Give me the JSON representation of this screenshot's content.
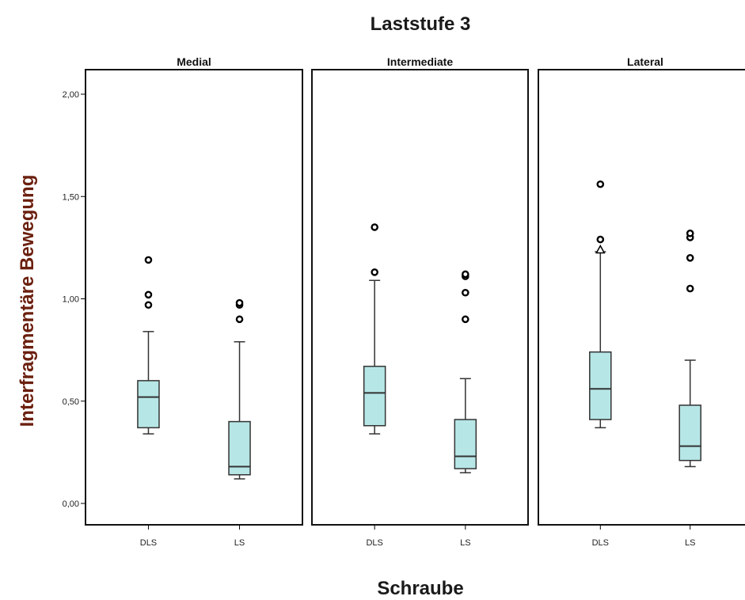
{
  "chart_data": {
    "type": "boxplot",
    "title": "Laststufe 3",
    "xlabel": "Schraube",
    "ylabel": "Interfragmentäre Bewegung",
    "ylim": [
      0,
      2.1
    ],
    "yticks": [
      {
        "value": 0,
        "label": "0,00"
      },
      {
        "value": 0.5,
        "label": "0,50"
      },
      {
        "value": 1.0,
        "label": "1,00"
      },
      {
        "value": 1.5,
        "label": "1,50"
      },
      {
        "value": 2.0,
        "label": "2,00"
      }
    ],
    "categories": [
      "DLS",
      "LS"
    ],
    "box_color": "#b7e6e6",
    "panels": [
      {
        "title": "Medial",
        "boxes": [
          {
            "category": "DLS",
            "whisker_low": 0.34,
            "q1": 0.37,
            "median": 0.52,
            "q3": 0.6,
            "whisker_high": 0.84,
            "outliers": [
              0.97,
              1.02,
              1.19
            ],
            "extremes": []
          },
          {
            "category": "LS",
            "whisker_low": 0.12,
            "q1": 0.14,
            "median": 0.18,
            "q3": 0.4,
            "whisker_high": 0.79,
            "outliers": [
              0.9,
              0.97,
              0.98
            ],
            "extremes": []
          }
        ]
      },
      {
        "title": "Intermediate",
        "boxes": [
          {
            "category": "DLS",
            "whisker_low": 0.34,
            "q1": 0.38,
            "median": 0.54,
            "q3": 0.67,
            "whisker_high": 1.09,
            "outliers": [
              1.13,
              1.35
            ],
            "extremes": []
          },
          {
            "category": "LS",
            "whisker_low": 0.15,
            "q1": 0.17,
            "median": 0.23,
            "q3": 0.41,
            "whisker_high": 0.61,
            "outliers": [
              0.9,
              1.03,
              1.11,
              1.12
            ],
            "extremes": []
          }
        ]
      },
      {
        "title": "Lateral",
        "boxes": [
          {
            "category": "DLS",
            "whisker_low": 0.37,
            "q1": 0.41,
            "median": 0.56,
            "q3": 0.74,
            "whisker_high": 1.23,
            "outliers": [
              1.29,
              1.56
            ],
            "extremes": [
              1.24
            ]
          },
          {
            "category": "LS",
            "whisker_low": 0.18,
            "q1": 0.21,
            "median": 0.28,
            "q3": 0.48,
            "whisker_high": 0.7,
            "outliers": [
              1.05,
              1.2,
              1.3,
              1.32
            ],
            "extremes": []
          }
        ]
      }
    ]
  }
}
